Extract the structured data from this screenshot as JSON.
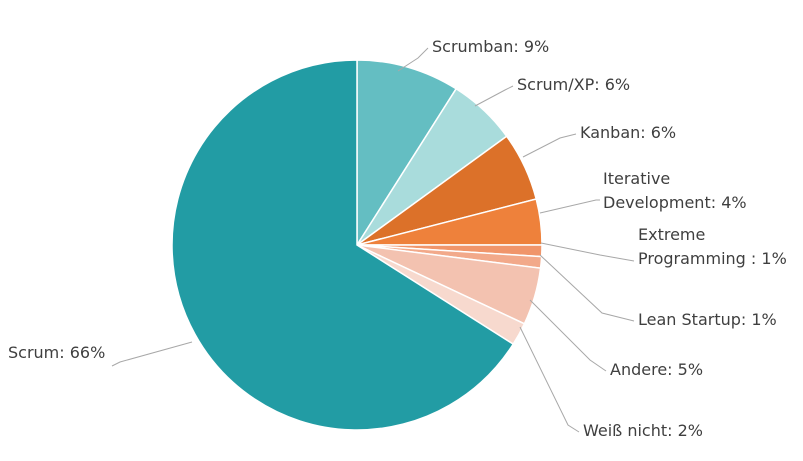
{
  "chart_data": {
    "type": "pie",
    "title": "",
    "slices": [
      {
        "key": "scrumban",
        "name": "Scrumban",
        "value": 9,
        "label": [
          "Scrumban: 9%"
        ],
        "color": "#64bec2"
      },
      {
        "key": "scrum-xp",
        "name": "Scrum/XP",
        "value": 6,
        "label": [
          "Scrum/XP: 6%"
        ],
        "color": "#a9dcdc"
      },
      {
        "key": "kanban",
        "name": "Kanban",
        "value": 6,
        "label": [
          "Kanban: 6%"
        ],
        "color": "#dc7129"
      },
      {
        "key": "iterative-development",
        "name": "Iterative Development",
        "value": 4,
        "label": [
          "Iterative",
          "Development: 4%"
        ],
        "color": "#ee813b"
      },
      {
        "key": "extreme-programming",
        "name": "Extreme Programming",
        "value": 1,
        "label": [
          "Extreme",
          "Programming : 1%"
        ],
        "color": "#f0956a"
      },
      {
        "key": "lean-startup",
        "name": "Lean Startup",
        "value": 1,
        "label": [
          "Lean Startup: 1%"
        ],
        "color": "#f2a98a"
      },
      {
        "key": "andere",
        "name": "Andere",
        "value": 5,
        "label": [
          "Andere: 5%"
        ],
        "color": "#f3c2b0"
      },
      {
        "key": "weiss-nicht",
        "name": "Weiß nicht",
        "value": 2,
        "label": [
          "Weiß nicht: 2%"
        ],
        "color": "#f7d9ce"
      },
      {
        "key": "scrum",
        "name": "Scrum",
        "value": 66,
        "label": [
          "Scrum: 66%"
        ],
        "color": "#229ca4"
      }
    ]
  }
}
